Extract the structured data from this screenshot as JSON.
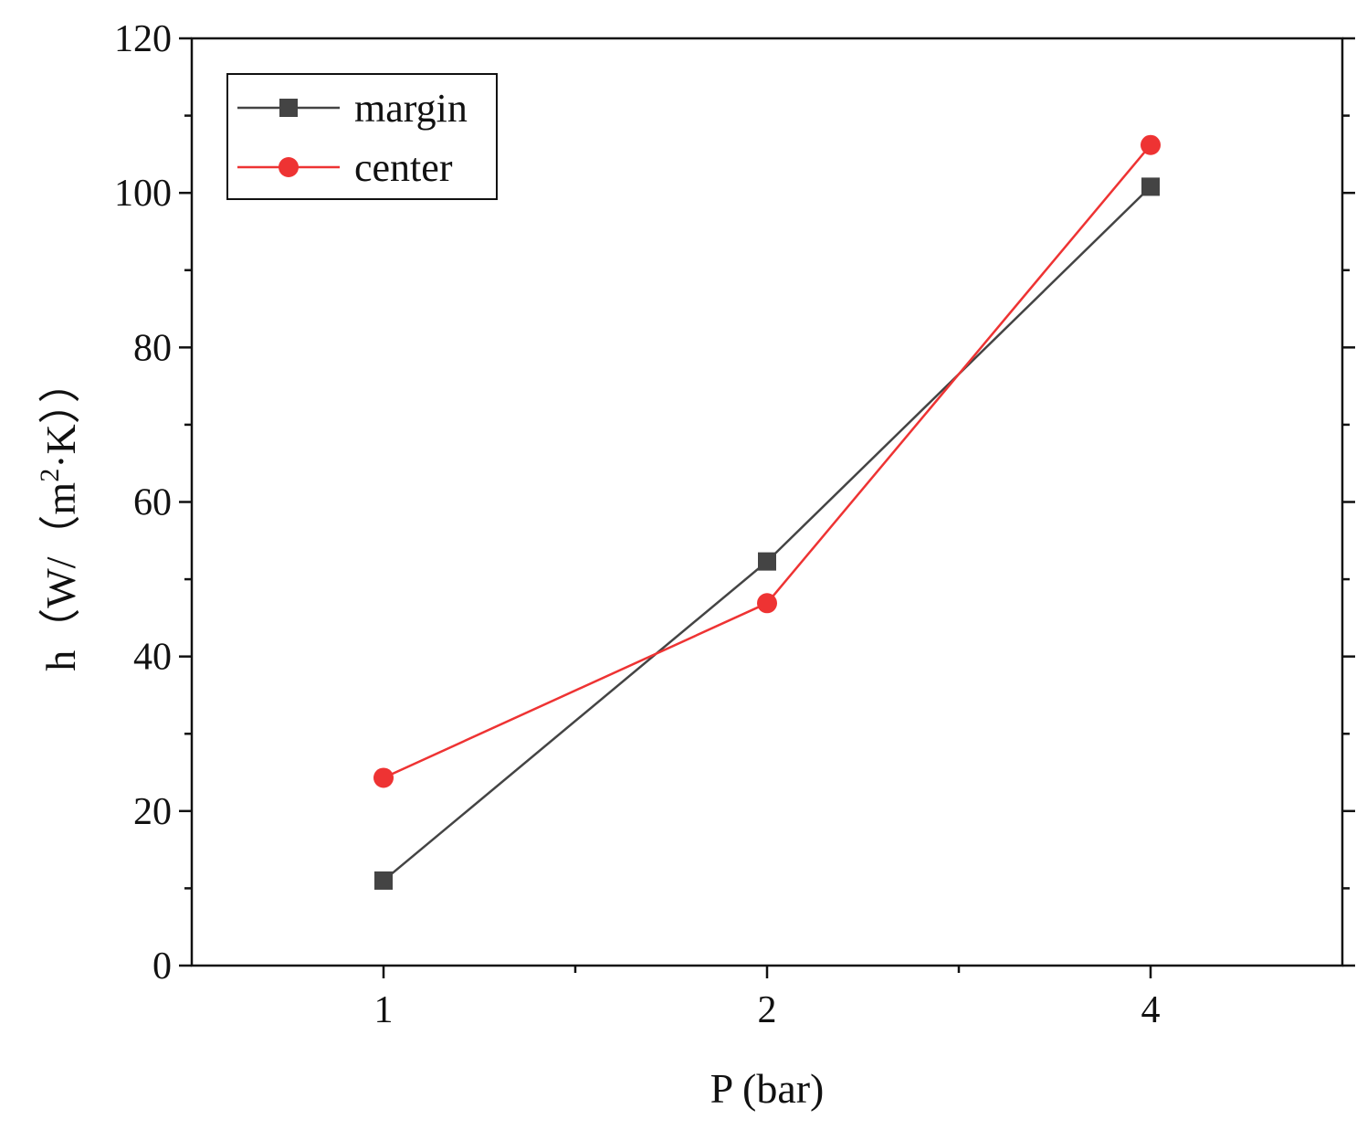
{
  "chart_data": {
    "type": "line",
    "categories": [
      "1",
      "2",
      "4"
    ],
    "xlabel": "P (bar)",
    "ylabel": "h（W/（m²·K））",
    "ylabel_parts": {
      "pre": "h（W/（m",
      "sup": "2",
      "post": "·K））"
    },
    "ylim": [
      0,
      120
    ],
    "yticks": [
      "0",
      "20",
      "40",
      "60",
      "80",
      "100",
      "120"
    ],
    "grid": false,
    "legend_position": "top-left",
    "series": [
      {
        "name": "margin",
        "values": [
          11,
          52.3,
          100.8
        ],
        "color": "#444444",
        "marker": "square"
      },
      {
        "name": "center",
        "values": [
          24.3,
          46.9,
          106.2
        ],
        "color": "#ee3333",
        "marker": "circle"
      }
    ]
  }
}
